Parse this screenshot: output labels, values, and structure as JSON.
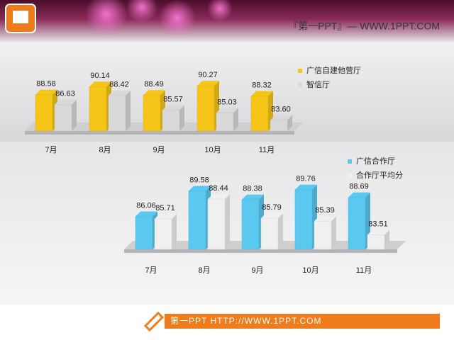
{
  "header": {
    "title": "『第一PPT』— WWW.1PPT.COM"
  },
  "footer": {
    "text": "第一PPT HTTP://WWW.1PPT.COM"
  },
  "chart_data": [
    {
      "type": "bar",
      "legend": "upper right",
      "categories": [
        "7月",
        "8月",
        "9月",
        "10月",
        "11月"
      ],
      "ylim": [
        81.5,
        91
      ],
      "series": [
        {
          "name": "广信自建他营厅",
          "color": "#f5c518",
          "values": [
            88.58,
            90.14,
            88.49,
            90.27,
            88.32
          ],
          "value_labels": [
            "88.58",
            "90.14",
            "88.49",
            "90.27",
            "88.32"
          ]
        },
        {
          "name": "智信厅",
          "color": "#d9d9d9",
          "values": [
            86.63,
            88.42,
            85.57,
            85.03,
            83.6
          ],
          "value_labels": [
            "86.63",
            "88.42",
            "85.57",
            "85.03",
            "83.60"
          ]
        }
      ]
    },
    {
      "type": "bar",
      "legend": "upper right",
      "categories": [
        "7月",
        "8月",
        "9月",
        "10月",
        "11月"
      ],
      "ylim": [
        81.5,
        91
      ],
      "series": [
        {
          "name": "广信合作厅",
          "color": "#5bc8f0",
          "values": [
            86.06,
            89.58,
            88.38,
            89.76,
            88.69
          ],
          "value_labels": [
            "86.06",
            "89.58",
            "88.38",
            "89.76",
            "88.69"
          ]
        },
        {
          "name": "合作厅平均分",
          "color": "#f0f0f0",
          "values": [
            85.71,
            88.44,
            85.79,
            85.39,
            83.51
          ],
          "value_labels": [
            "85.71",
            "88.44",
            "85.79",
            "85.39",
            "83.51"
          ]
        }
      ]
    }
  ]
}
